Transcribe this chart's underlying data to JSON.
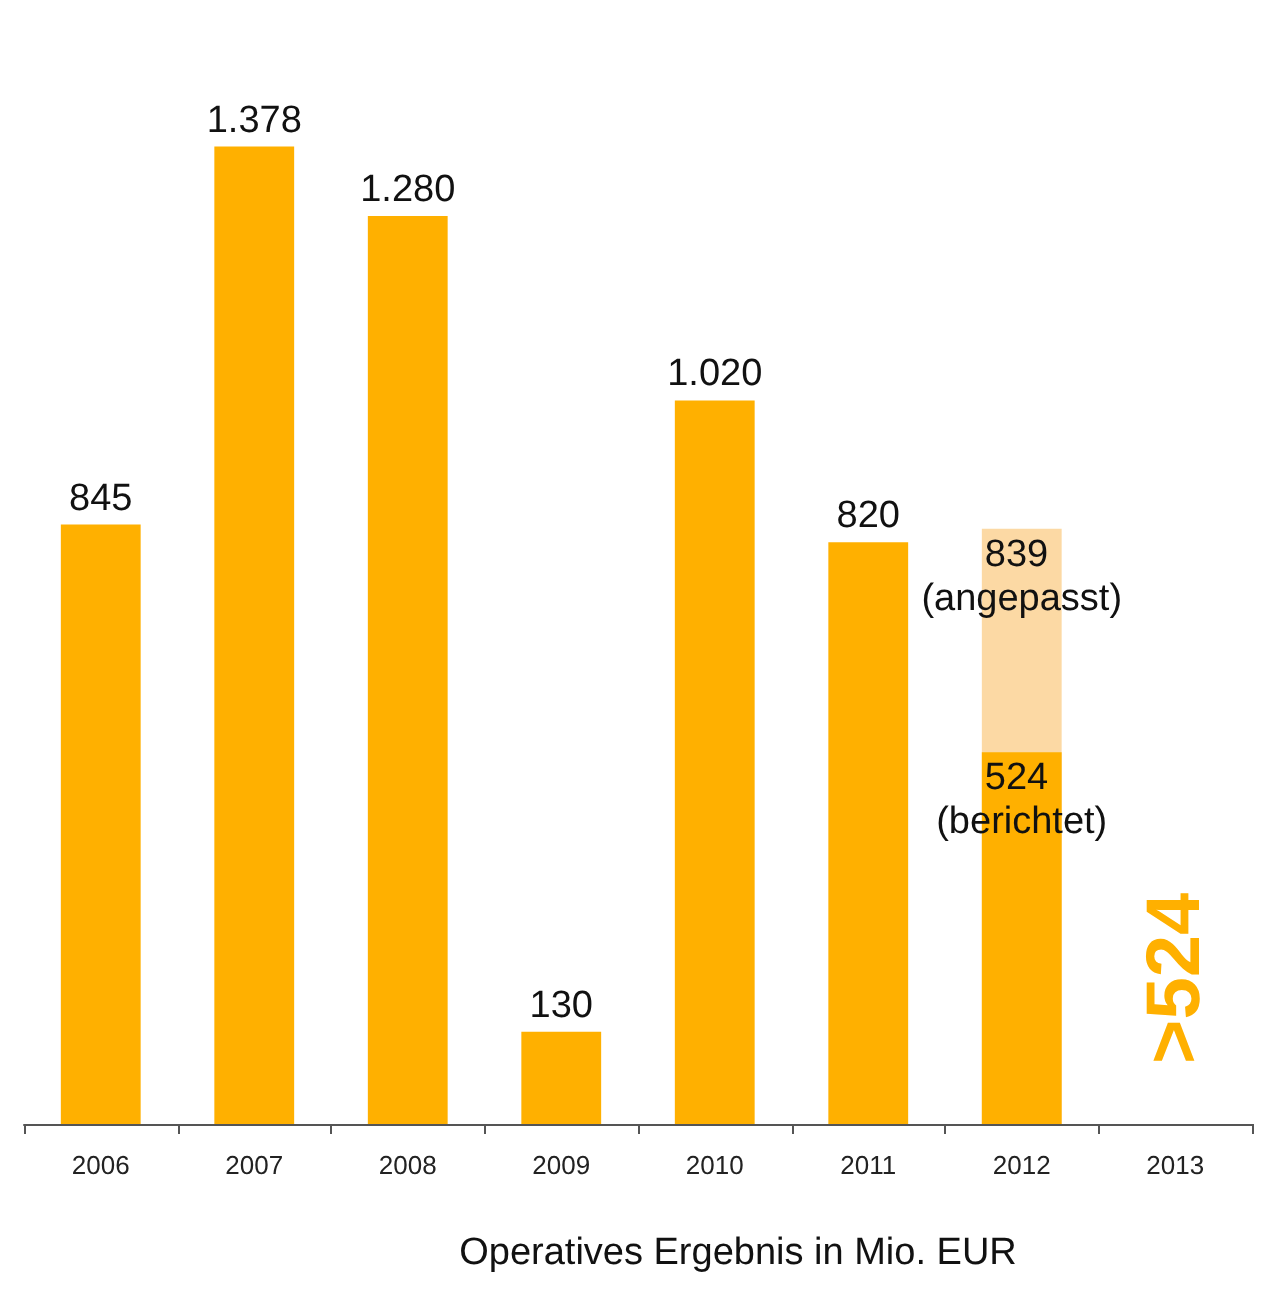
{
  "chart_data": {
    "type": "bar",
    "xlabel": "Operatives Ergebnis in Mio. EUR",
    "categories": [
      "2006",
      "2007",
      "2008",
      "2009",
      "2010",
      "2011",
      "2012",
      "2013"
    ],
    "series": [
      {
        "color": "#fcd9a4",
        "values": [
          null,
          null,
          null,
          null,
          null,
          null,
          839,
          null
        ],
        "value_labels": [
          null,
          null,
          null,
          null,
          null,
          null,
          "839 (angepasst)",
          null
        ]
      },
      {
        "color": "#ffb000",
        "values": [
          845,
          1378,
          1280,
          130,
          1020,
          820,
          524,
          null
        ],
        "value_labels": [
          "845",
          "1.378",
          "1.280",
          "130",
          "1.020",
          "820",
          "524 (berichtet)",
          null
        ]
      }
    ],
    "annotations": [
      ">524"
    ],
    "grid": false
  }
}
